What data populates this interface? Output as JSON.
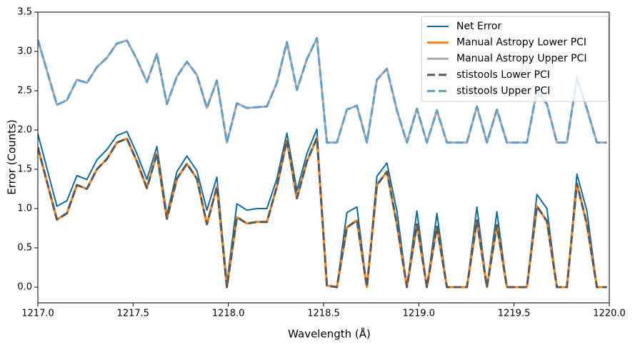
{
  "chart_data": {
    "type": "line",
    "xlabel": "Wavelength (Å)",
    "ylabel": "Error (Counts)",
    "x": [
      1217.0,
      1217.1,
      1217.1525,
      1217.205,
      1217.2575,
      1217.31,
      1217.3625,
      1217.415,
      1217.4675,
      1217.52,
      1217.5725,
      1217.625,
      1217.6775,
      1217.73,
      1217.7825,
      1217.835,
      1217.8875,
      1217.94,
      1217.9925,
      1218.045,
      1218.0975,
      1218.15,
      1218.2025,
      1218.255,
      1218.3075,
      1218.36,
      1218.4125,
      1218.465,
      1218.5175,
      1218.57,
      1218.6225,
      1218.675,
      1218.7275,
      1218.78,
      1218.8325,
      1218.885,
      1218.9375,
      1218.99,
      1219.0425,
      1219.095,
      1219.1475,
      1219.2,
      1219.2525,
      1219.305,
      1219.3575,
      1219.41,
      1219.4625,
      1219.515,
      1219.5675,
      1219.62,
      1219.6725,
      1219.725,
      1219.7775,
      1219.83,
      1219.8825,
      1219.935,
      1219.9875
    ],
    "series": [
      {
        "name": "Net Error",
        "color": "#0b6ba5",
        "linestyle": "solid",
        "values": [
          1.95,
          1.03,
          1.1,
          1.42,
          1.37,
          1.62,
          1.75,
          1.93,
          1.98,
          1.7,
          1.37,
          1.79,
          0.92,
          1.47,
          1.67,
          1.48,
          0.98,
          1.4,
          0.05,
          1.06,
          0.98,
          1.0,
          1.0,
          1.38,
          1.96,
          1.23,
          1.7,
          2.01,
          0.02,
          0.0,
          0.95,
          1.02,
          0.0,
          1.41,
          1.58,
          0.97,
          0.0,
          0.97,
          0.0,
          0.94,
          0.0,
          0.0,
          0.0,
          1.02,
          0.0,
          0.96,
          0.0,
          0.0,
          0.0,
          1.18,
          1.0,
          0.0,
          0.0,
          1.44,
          0.97,
          0.0,
          0.0
        ]
      },
      {
        "name": "Manual Astropy Lower PCI",
        "color": "#ff800e",
        "linestyle": "solid",
        "values": [
          1.78,
          0.86,
          0.94,
          1.3,
          1.25,
          1.5,
          1.63,
          1.84,
          1.89,
          1.6,
          1.26,
          1.7,
          0.87,
          1.38,
          1.57,
          1.38,
          0.8,
          1.28,
          0.0,
          0.89,
          0.81,
          0.83,
          0.83,
          1.28,
          1.87,
          1.13,
          1.6,
          1.9,
          0.02,
          0.0,
          0.76,
          0.85,
          0.0,
          1.3,
          1.47,
          0.8,
          0.0,
          0.8,
          0.0,
          0.77,
          0.0,
          0.0,
          0.0,
          0.85,
          0.0,
          0.79,
          0.0,
          0.0,
          0.0,
          1.03,
          0.84,
          0.0,
          0.0,
          1.32,
          0.8,
          0.0,
          0.0
        ]
      },
      {
        "name": "Manual Astropy Upper PCI",
        "color": "#ababab",
        "linestyle": "solid",
        "values": [
          3.15,
          2.32,
          2.38,
          2.64,
          2.6,
          2.8,
          2.92,
          3.1,
          3.14,
          2.9,
          2.61,
          2.97,
          2.33,
          2.68,
          2.87,
          2.7,
          2.28,
          2.63,
          1.84,
          2.34,
          2.28,
          2.29,
          2.3,
          2.6,
          3.12,
          2.51,
          2.9,
          3.17,
          1.84,
          1.84,
          2.26,
          2.31,
          1.84,
          2.64,
          2.78,
          2.25,
          1.84,
          2.27,
          1.84,
          2.25,
          1.84,
          1.84,
          1.84,
          2.3,
          1.84,
          2.26,
          1.84,
          1.84,
          1.84,
          2.5,
          2.33,
          1.84,
          1.84,
          2.66,
          2.27,
          1.84,
          1.84
        ]
      },
      {
        "name": "stistools Lower PCI",
        "color": "#595959",
        "linestyle": "dashed",
        "values": [
          1.78,
          0.86,
          0.94,
          1.3,
          1.25,
          1.5,
          1.63,
          1.84,
          1.89,
          1.6,
          1.26,
          1.7,
          0.87,
          1.38,
          1.57,
          1.38,
          0.8,
          1.28,
          0.0,
          0.89,
          0.81,
          0.83,
          0.83,
          1.28,
          1.87,
          1.13,
          1.6,
          1.9,
          0.02,
          0.0,
          0.76,
          0.85,
          0.0,
          1.3,
          1.47,
          0.8,
          0.0,
          0.8,
          0.0,
          0.77,
          0.0,
          0.0,
          0.0,
          0.85,
          0.0,
          0.79,
          0.0,
          0.0,
          0.0,
          1.03,
          0.84,
          0.0,
          0.0,
          1.32,
          0.8,
          0.0,
          0.0
        ]
      },
      {
        "name": "stistools Upper PCI",
        "color": "#5f9ed1",
        "linestyle": "dashed",
        "values": [
          3.15,
          2.32,
          2.38,
          2.64,
          2.6,
          2.8,
          2.92,
          3.1,
          3.14,
          2.9,
          2.61,
          2.97,
          2.33,
          2.68,
          2.87,
          2.7,
          2.28,
          2.63,
          1.84,
          2.34,
          2.28,
          2.29,
          2.3,
          2.6,
          3.12,
          2.51,
          2.9,
          3.17,
          1.84,
          1.84,
          2.26,
          2.31,
          1.84,
          2.64,
          2.78,
          2.25,
          1.84,
          2.27,
          1.84,
          2.25,
          1.84,
          1.84,
          1.84,
          2.3,
          1.84,
          2.26,
          1.84,
          1.84,
          1.84,
          2.5,
          2.33,
          1.84,
          1.84,
          2.66,
          2.27,
          1.84,
          1.84
        ]
      }
    ],
    "xlim": [
      1217.0,
      1220.0
    ],
    "xticks": [
      {
        "value": 1217.0,
        "label": "1217.0"
      },
      {
        "value": 1217.5,
        "label": "1217.5"
      },
      {
        "value": 1218.0,
        "label": "1218.0"
      },
      {
        "value": 1218.5,
        "label": "1218.5"
      },
      {
        "value": 1219.0,
        "label": "1219.0"
      },
      {
        "value": 1219.5,
        "label": "1219.5"
      },
      {
        "value": 1220.0,
        "label": "1220.0"
      }
    ],
    "ylim": [
      -0.2,
      3.5
    ],
    "yticks": [
      {
        "value": 0,
        "label": "0.0"
      },
      0.5,
      {
        "value": 1,
        "label": "1.0"
      },
      1.5,
      {
        "value": 2,
        "label": "2.0"
      },
      2.5,
      {
        "value": 3,
        "label": "3.0"
      },
      3.5
    ],
    "grid": false,
    "legend": "upper right"
  }
}
